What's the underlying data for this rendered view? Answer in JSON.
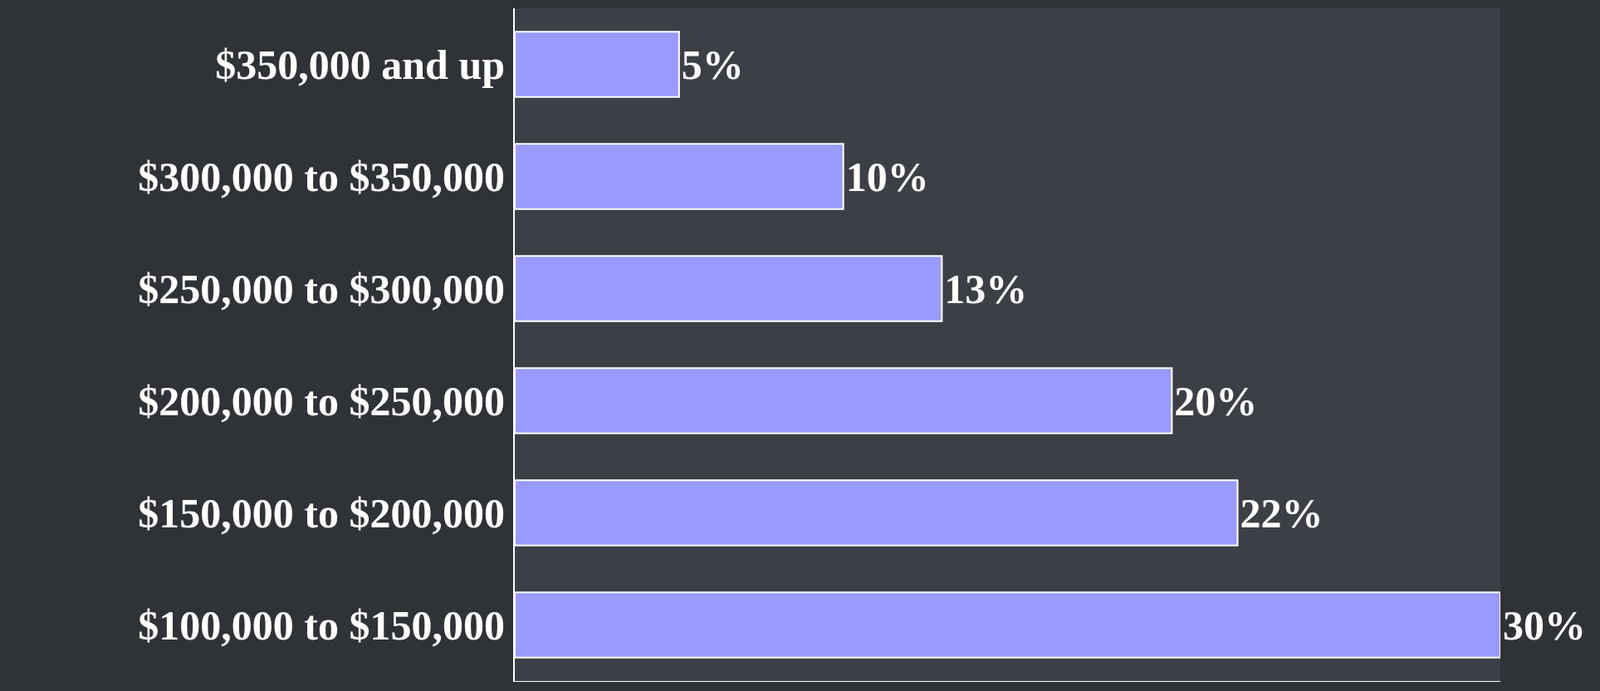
{
  "chart_data": {
    "type": "bar",
    "orientation": "horizontal",
    "categories": [
      "$350,000 and up",
      "$300,000 to $350,000",
      "$250,000 to $300,000",
      "$200,000 to $250,000",
      "$150,000 to $200,000",
      "$100,000 to $150,000"
    ],
    "values": [
      5,
      10,
      13,
      20,
      22,
      30
    ],
    "value_labels": [
      "5%",
      "10%",
      "13%",
      "20%",
      "22%",
      "30%"
    ],
    "color": "#9999ff",
    "xlim": [
      0,
      30
    ],
    "grid": false,
    "data_labels": true,
    "tick_labels": "y"
  }
}
